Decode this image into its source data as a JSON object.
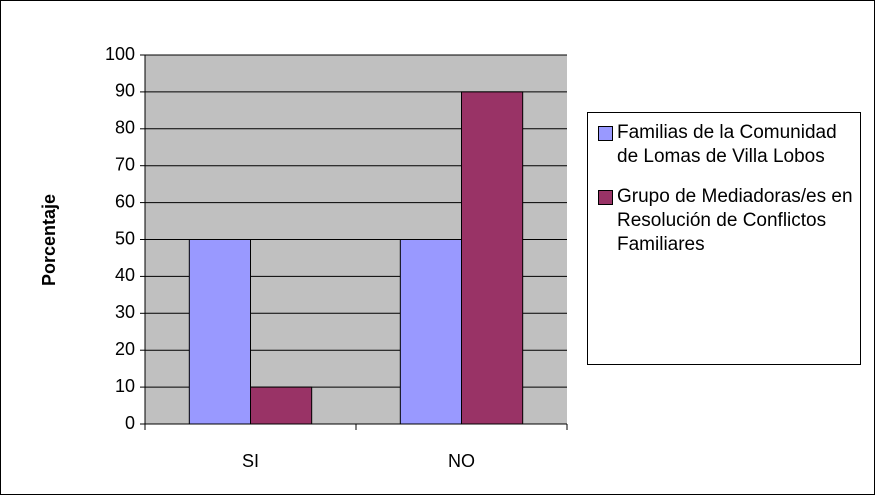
{
  "chart_data": {
    "type": "bar",
    "ylabel": "Porcentaje",
    "categories": [
      "SI",
      "NO"
    ],
    "series": [
      {
        "name": "Familias de la Comunidad de Lomas de Villa Lobos",
        "color": "#9999ff",
        "values": [
          50,
          50
        ]
      },
      {
        "name": "Grupo de Mediadoras/es en Resolución de Conflictos Familiares",
        "color": "#993366",
        "values": [
          10,
          90
        ]
      }
    ],
    "ylim": [
      0,
      100
    ],
    "yticks": [
      0,
      10,
      20,
      30,
      40,
      50,
      60,
      70,
      80,
      90,
      100
    ],
    "grid": true,
    "legend": "right",
    "plot_background": "#c0c0c0"
  }
}
